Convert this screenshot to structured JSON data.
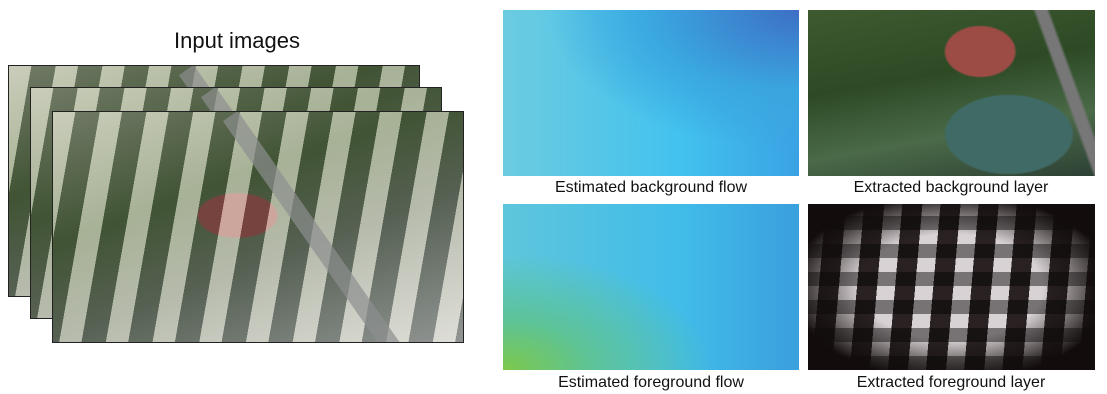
{
  "input": {
    "title": "Input images"
  },
  "panels": [
    {
      "caption": "Estimated background flow"
    },
    {
      "caption": "Extracted background layer"
    },
    {
      "caption": "Estimated foreground flow"
    },
    {
      "caption": "Extracted foreground layer"
    }
  ]
}
